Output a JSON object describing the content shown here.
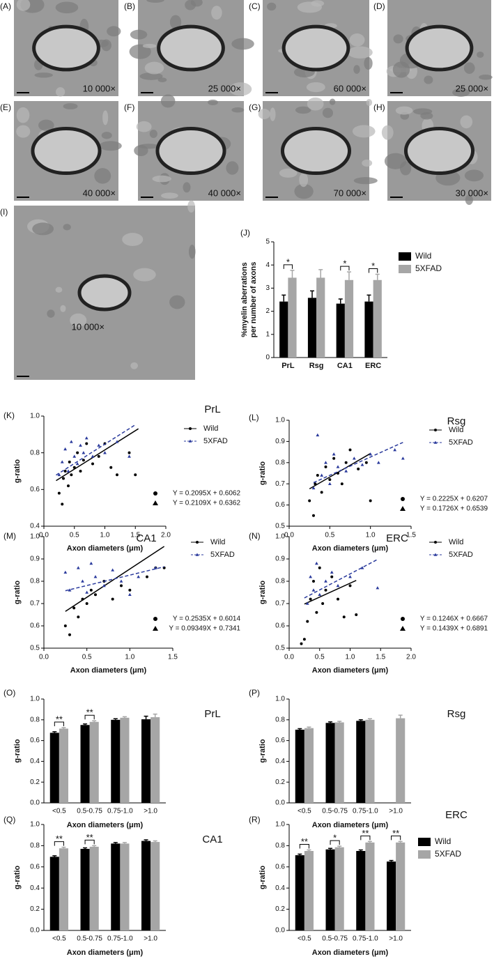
{
  "images": [
    {
      "label": "(A)",
      "magnification": "10 000×"
    },
    {
      "label": "(B)",
      "magnification": "25 000×"
    },
    {
      "label": "(C)",
      "magnification": "60 000×"
    },
    {
      "label": "(D)",
      "magnification": "25 000×"
    },
    {
      "label": "(E)",
      "magnification": "40 000×"
    },
    {
      "label": "(F)",
      "magnification": "40 000×"
    },
    {
      "label": "(G)",
      "magnification": "70 000×"
    },
    {
      "label": "(H)",
      "magnification": "30 000×"
    },
    {
      "label": "(I)",
      "magnification": "10 000×"
    }
  ],
  "chart_data": [
    {
      "type": "bar",
      "panel": "(J)",
      "ylabel": [
        "%myelin aberrations",
        "per number of axons"
      ],
      "categories": [
        "PrL",
        "Rsg",
        "CA1",
        "ERC"
      ],
      "series": [
        {
          "name": "Wild",
          "color": "#000000",
          "values": [
            2.42,
            2.58,
            2.33,
            2.42
          ],
          "errors": [
            0.28,
            0.3,
            0.2,
            0.28
          ]
        },
        {
          "name": "5XFAD",
          "color": "#a6a6a6",
          "values": [
            3.45,
            3.45,
            3.35,
            3.35
          ],
          "errors": [
            0.32,
            0.35,
            0.35,
            0.25
          ]
        }
      ],
      "significance": [
        "*",
        null,
        "*",
        "*"
      ],
      "ylim": [
        0,
        5
      ],
      "yticks": [
        0,
        1,
        2,
        3,
        4,
        5
      ],
      "legend": "right"
    },
    {
      "type": "scatter",
      "panel": "(K)",
      "title": "PrL",
      "xlabel": "Axon diameters (μm)",
      "ylabel": "g-ratio",
      "xlim": [
        0,
        2
      ],
      "xticks": [
        {
          "value": 0,
          "label": "0.0"
        },
        0.5,
        {
          "value": 1,
          "label": "1.0"
        },
        1.5,
        {
          "value": 2,
          "label": "2.0"
        }
      ],
      "ylim": [
        0.4,
        1
      ],
      "yticks": [
        0.4,
        0.6,
        0.8,
        {
          "value": 1,
          "label": "1.0"
        }
      ],
      "series": [
        {
          "name": "Wild",
          "color": "#000000",
          "equation": "Y = 0.2095X + 0.6062",
          "x": [
            0.25,
            0.3,
            0.32,
            0.35,
            0.4,
            0.42,
            0.45,
            0.5,
            0.55,
            0.6,
            0.65,
            0.7,
            0.8,
            0.9,
            1.0,
            1.1,
            1.2,
            1.4,
            1.5
          ],
          "values": [
            0.58,
            0.52,
            0.66,
            0.7,
            0.62,
            0.75,
            0.68,
            0.72,
            0.8,
            0.7,
            0.76,
            0.85,
            0.74,
            0.78,
            0.85,
            0.72,
            0.68,
            0.8,
            0.68
          ],
          "fit": {
            "x": [
              0.2,
              1.55
            ],
            "values": [
              0.6481,
              0.9309
            ]
          }
        },
        {
          "name": "5XFAD",
          "color": "#2a3a9c",
          "equation": "Y = 0.2109X + 0.6362",
          "x": [
            0.25,
            0.3,
            0.35,
            0.4,
            0.45,
            0.5,
            0.55,
            0.6,
            0.65,
            0.7,
            0.8,
            0.9,
            1.0,
            1.2,
            1.4
          ],
          "values": [
            0.68,
            0.75,
            0.82,
            0.7,
            0.86,
            0.78,
            0.74,
            0.84,
            0.8,
            0.88,
            0.78,
            0.84,
            0.8,
            0.86,
            0.78
          ],
          "fit": {
            "x": [
              0.2,
              1.5
            ],
            "values": [
              0.6784,
              0.9526
            ]
          }
        }
      ]
    },
    {
      "type": "scatter",
      "panel": "(L)",
      "title": "Rsg",
      "xlabel": "Axon diameters (μm)",
      "ylabel": "g-ratio",
      "xlim": [
        0,
        1.5
      ],
      "xticks": [
        {
          "value": 0,
          "label": "0.0"
        },
        0.5,
        {
          "value": 1,
          "label": "1.0"
        },
        1.5
      ],
      "ylim": [
        0.5,
        1
      ],
      "yticks": [
        0.5,
        0.6,
        0.7,
        0.8,
        0.9,
        {
          "value": 1,
          "label": "1.0"
        }
      ],
      "series": [
        {
          "name": "Wild",
          "color": "#000000",
          "equation": "Y = 0.2225X + 0.6207",
          "x": [
            0.25,
            0.3,
            0.32,
            0.35,
            0.4,
            0.45,
            0.5,
            0.55,
            0.6,
            0.65,
            0.7,
            0.75,
            0.85,
            0.95,
            1.0
          ],
          "values": [
            0.62,
            0.55,
            0.7,
            0.74,
            0.66,
            0.78,
            0.72,
            0.82,
            0.75,
            0.7,
            0.8,
            0.86,
            0.77,
            0.8,
            0.62
          ],
          "fit": {
            "x": [
              0.25,
              1.0
            ],
            "values": [
              0.6763,
              0.8432
            ]
          }
        },
        {
          "name": "5XFAD",
          "color": "#2a3a9c",
          "equation": "Y = 0.1726X + 0.6539",
          "x": [
            0.3,
            0.35,
            0.4,
            0.45,
            0.5,
            0.55,
            0.6,
            0.7,
            0.8,
            0.9,
            1.0,
            1.1,
            1.3,
            1.4
          ],
          "values": [
            0.68,
            0.93,
            0.74,
            0.8,
            0.7,
            0.84,
            0.78,
            0.76,
            0.82,
            0.79,
            0.84,
            0.8,
            0.86,
            0.82
          ],
          "fit": {
            "x": [
              0.3,
              1.4
            ],
            "values": [
              0.7057,
              0.8955
            ]
          }
        }
      ]
    },
    {
      "type": "scatter",
      "panel": "(M)",
      "title": "CA1",
      "xlabel": "Axon diameters (μm)",
      "ylabel": "g-ratio",
      "xlim": [
        0,
        1.5
      ],
      "xticks": [
        {
          "value": 0,
          "label": "0.0"
        },
        0.5,
        {
          "value": 1,
          "label": "1.0"
        },
        1.5
      ],
      "ylim": [
        0.5,
        1
      ],
      "yticks": [
        0.5,
        0.6,
        0.7,
        0.8,
        0.9,
        {
          "value": 1,
          "label": "1.0"
        }
      ],
      "series": [
        {
          "name": "Wild",
          "color": "#000000",
          "equation": "Y = 0.2535X + 0.6014",
          "x": [
            0.25,
            0.3,
            0.35,
            0.4,
            0.45,
            0.5,
            0.55,
            0.6,
            0.7,
            0.8,
            0.9,
            1.0,
            1.2,
            1.3,
            1.4
          ],
          "values": [
            0.6,
            0.56,
            0.68,
            0.64,
            0.72,
            0.7,
            0.76,
            0.74,
            0.8,
            0.72,
            0.78,
            0.76,
            0.82,
            0.86,
            0.86
          ],
          "fit": {
            "x": [
              0.25,
              1.4
            ],
            "values": [
              0.6648,
              0.9563
            ]
          }
        },
        {
          "name": "5XFAD",
          "color": "#2a3a9c",
          "equation": "Y = 0.09349X + 0.7341",
          "x": [
            0.25,
            0.3,
            0.4,
            0.45,
            0.5,
            0.55,
            0.6,
            0.7,
            0.8,
            0.9,
            1.0,
            1.1,
            1.3
          ],
          "values": [
            0.84,
            0.76,
            0.86,
            0.8,
            0.75,
            0.88,
            0.82,
            0.78,
            0.85,
            0.8,
            0.74,
            0.82,
            0.86
          ],
          "fit": {
            "x": [
              0.25,
              1.4
            ],
            "values": [
              0.7575,
              0.865
            ]
          }
        }
      ]
    },
    {
      "type": "scatter",
      "panel": "(N)",
      "title": "ERC",
      "xlabel": "Axon diameters (μm)",
      "ylabel": "g-ratio",
      "xlim": [
        0,
        2
      ],
      "xticks": [
        {
          "value": 0,
          "label": "0.0"
        },
        0.5,
        {
          "value": 1,
          "label": "1.0"
        },
        1.5,
        {
          "value": 2,
          "label": "2.0"
        }
      ],
      "ylim": [
        0.5,
        1
      ],
      "yticks": [
        0.5,
        0.6,
        0.7,
        0.8,
        0.9,
        {
          "value": 1,
          "label": "1.0"
        }
      ],
      "series": [
        {
          "name": "Wild",
          "color": "#000000",
          "equation": "Y = 0.1246X + 0.6667",
          "x": [
            0.2,
            0.25,
            0.3,
            0.35,
            0.4,
            0.45,
            0.5,
            0.55,
            0.6,
            0.7,
            0.8,
            0.9,
            1.0,
            1.1
          ],
          "values": [
            0.52,
            0.54,
            0.62,
            0.72,
            0.8,
            0.66,
            0.86,
            0.7,
            0.76,
            0.82,
            0.72,
            0.64,
            0.78,
            0.65
          ],
          "fit": {
            "x": [
              0.25,
              1.1
            ],
            "values": [
              0.6979,
              0.8038
            ]
          }
        },
        {
          "name": "5XFAD",
          "color": "#2a3a9c",
          "equation": "Y = 0.1439X + 0.6891",
          "x": [
            0.3,
            0.35,
            0.4,
            0.45,
            0.5,
            0.6,
            0.7,
            0.8,
            1.0,
            1.2,
            1.45
          ],
          "values": [
            0.7,
            0.82,
            0.76,
            0.88,
            0.74,
            0.8,
            0.84,
            0.78,
            0.82,
            0.86,
            0.77
          ],
          "fit": {
            "x": [
              0.25,
              1.45
            ],
            "values": [
              0.7251,
              0.8978
            ]
          }
        }
      ]
    },
    {
      "type": "bar",
      "panel": "(O)",
      "title": "PrL",
      "xlabel": "Axon diameters (μm)",
      "ylabel": "g-ratio",
      "categories": [
        "<0.5",
        "0.5-0.75",
        "0.75-1.0",
        ">1.0"
      ],
      "series": [
        {
          "name": "Wild",
          "color": "#000000",
          "values": [
            0.675,
            0.75,
            0.8,
            0.805
          ],
          "errors": [
            0.01,
            0.01,
            0.01,
            0.03
          ]
        },
        {
          "name": "5XFAD",
          "color": "#a6a6a6",
          "values": [
            0.715,
            0.78,
            0.82,
            0.825
          ],
          "errors": [
            0.01,
            0.01,
            0.01,
            0.03
          ]
        }
      ],
      "significance": [
        "**",
        "**",
        null,
        null
      ],
      "ylim": [
        0,
        1
      ],
      "yticks": [
        {
          "value": 0,
          "label": "0.0"
        },
        0.2,
        0.4,
        0.6,
        0.8,
        {
          "value": 1,
          "label": "1.0"
        }
      ]
    },
    {
      "type": "bar",
      "panel": "(P)",
      "title": "Rsg",
      "xlabel": "Axon diameters (μm)",
      "ylabel": "g-ratio",
      "categories": [
        "<0.5",
        "0.5-0.75",
        "0.75-1.0",
        ">1.0"
      ],
      "series": [
        {
          "name": "Wild",
          "color": "#000000",
          "values": [
            0.705,
            0.77,
            0.79,
            null
          ],
          "errors": [
            0.01,
            0.01,
            0.01,
            null
          ]
        },
        {
          "name": "5XFAD",
          "color": "#a6a6a6",
          "values": [
            0.72,
            0.775,
            0.8,
            0.815
          ],
          "errors": [
            0.01,
            0.01,
            0.01,
            0.03
          ]
        }
      ],
      "significance": [
        null,
        null,
        null,
        null
      ],
      "ylim": [
        0,
        1
      ],
      "yticks": [
        {
          "value": 0,
          "label": "0.0"
        },
        0.2,
        0.4,
        0.6,
        0.8,
        {
          "value": 1,
          "label": "1.0"
        }
      ]
    },
    {
      "type": "bar",
      "panel": "(Q)",
      "title": "CA1",
      "xlabel": "Axon diameters (μm)",
      "ylabel": "g-ratio",
      "categories": [
        "<0.5",
        "0.5-0.75",
        "0.75-1.0",
        ">1.0"
      ],
      "series": [
        {
          "name": "Wild",
          "color": "#000000",
          "values": [
            0.695,
            0.77,
            0.82,
            0.845
          ],
          "errors": [
            0.01,
            0.01,
            0.01,
            0.01
          ]
        },
        {
          "name": "5XFAD",
          "color": "#a6a6a6",
          "values": [
            0.775,
            0.79,
            0.82,
            0.835
          ],
          "errors": [
            0.01,
            0.01,
            0.01,
            0.01
          ]
        }
      ],
      "significance": [
        "**",
        "**",
        null,
        null
      ],
      "ylim": [
        0,
        1
      ],
      "yticks": [
        {
          "value": 0,
          "label": "0.0"
        },
        0.2,
        0.4,
        0.6,
        0.8,
        {
          "value": 1,
          "label": "1.0"
        }
      ]
    },
    {
      "type": "bar",
      "panel": "(R)",
      "title": "ERC",
      "xlabel": "Axon diameters (μm)",
      "ylabel": "g-ratio",
      "categories": [
        "<0.5",
        "0.5-0.75",
        "0.75-1.0",
        ">1.0"
      ],
      "series": [
        {
          "name": "Wild",
          "color": "#000000",
          "values": [
            0.71,
            0.765,
            0.75,
            0.65
          ],
          "errors": [
            0.01,
            0.01,
            0.01,
            0.01
          ]
        },
        {
          "name": "5XFAD",
          "color": "#a6a6a6",
          "values": [
            0.75,
            0.785,
            0.83,
            0.83
          ],
          "errors": [
            0.01,
            0.01,
            0.01,
            0.01
          ]
        }
      ],
      "significance": [
        "**",
        "*",
        "**",
        "**"
      ],
      "ylim": [
        0,
        1
      ],
      "yticks": [
        {
          "value": 0,
          "label": "0.0"
        },
        0.2,
        0.4,
        0.6,
        0.8,
        {
          "value": 1,
          "label": "1.0"
        }
      ],
      "legend": "right"
    }
  ]
}
